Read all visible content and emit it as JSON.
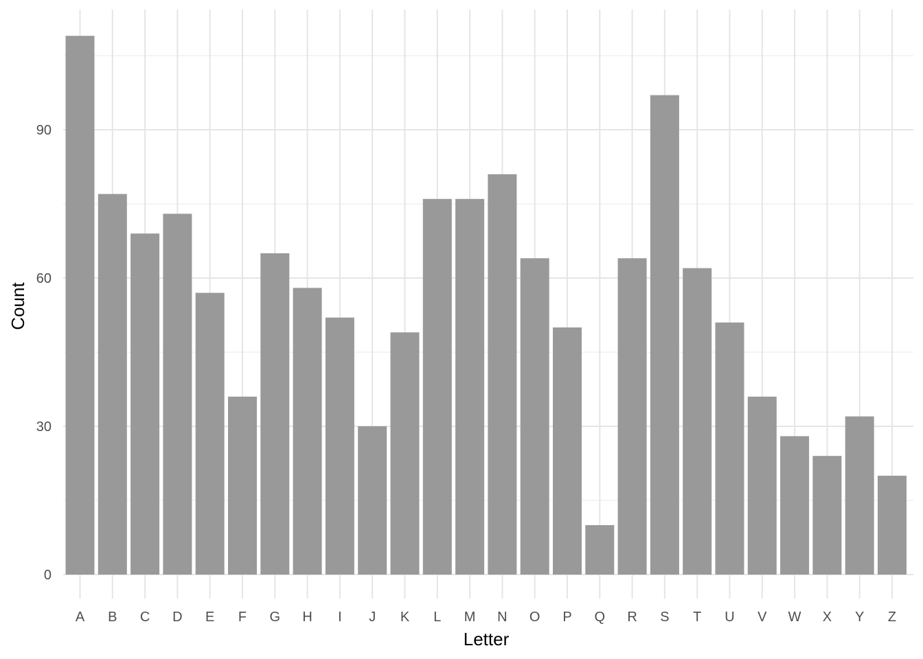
{
  "chart_data": {
    "type": "bar",
    "title": "",
    "xlabel": "Letter",
    "ylabel": "Count",
    "ylim": [
      0,
      111
    ],
    "yticks": [
      0,
      30,
      60,
      90
    ],
    "yticks_minor": [
      15,
      45,
      75,
      105
    ],
    "grid": true,
    "legend": "none",
    "bar_color": "#999999",
    "grid_color": "#e5e5e5",
    "categories": [
      "A",
      "B",
      "C",
      "D",
      "E",
      "F",
      "G",
      "H",
      "I",
      "J",
      "K",
      "L",
      "M",
      "N",
      "O",
      "P",
      "Q",
      "R",
      "S",
      "T",
      "U",
      "V",
      "W",
      "X",
      "Y",
      "Z"
    ],
    "values": [
      109,
      77,
      69,
      73,
      57,
      36,
      65,
      58,
      52,
      30,
      49,
      76,
      76,
      81,
      64,
      50,
      10,
      64,
      97,
      62,
      51,
      36,
      28,
      24,
      32,
      20
    ]
  }
}
